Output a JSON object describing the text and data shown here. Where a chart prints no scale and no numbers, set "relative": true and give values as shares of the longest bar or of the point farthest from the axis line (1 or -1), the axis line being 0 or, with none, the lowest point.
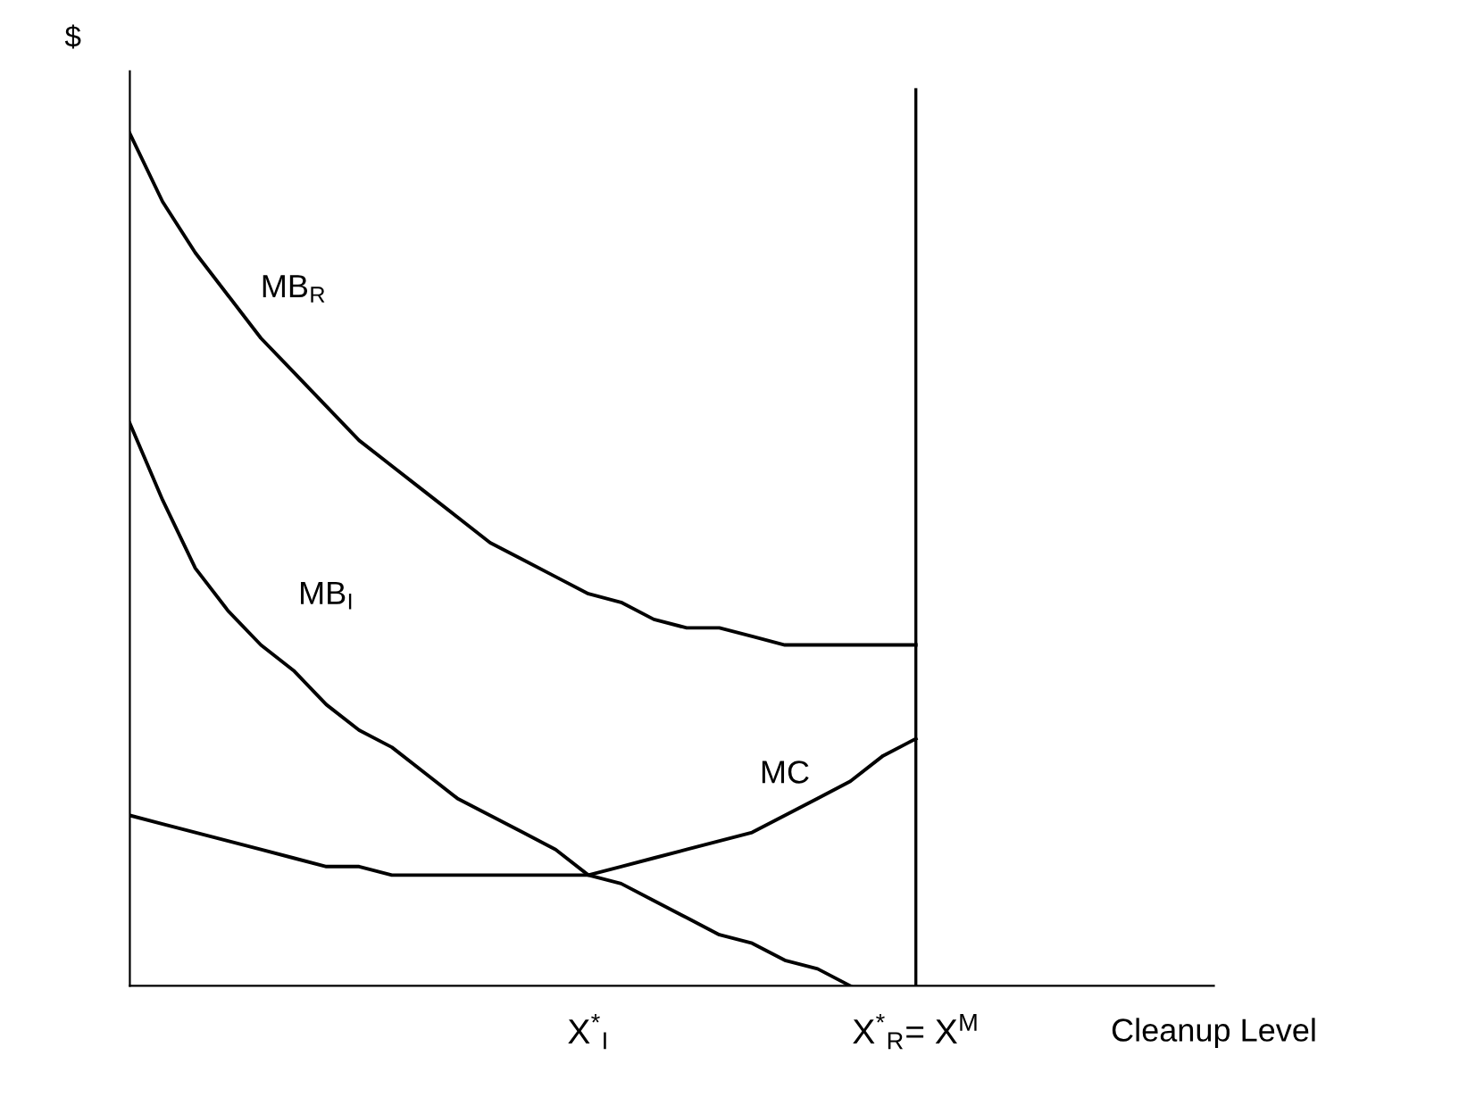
{
  "chart_data": {
    "type": "line",
    "relative": true,
    "ylabel": "$",
    "xlabel": "Cleanup Level",
    "tick_labels": "x",
    "grid": false,
    "legend": false,
    "marker": "none",
    "line_style": "solid",
    "categories": [
      null,
      null,
      null,
      null,
      null,
      null,
      null,
      null,
      null,
      null,
      null,
      null,
      null,
      null,
      "X$^{*}$$_{I}$",
      null,
      null,
      null,
      null,
      null,
      null,
      null,
      null,
      null,
      "X$^{*}$$_{R}$= X$^{M}$",
      null,
      null,
      null,
      null,
      null,
      null,
      null,
      null,
      null
    ],
    "series": [
      {
        "name": "MB$_{R}$",
        "color": "#000000",
        "values": [
          1.0,
          0.92,
          0.86,
          0.81,
          0.76,
          0.72,
          0.68,
          0.64,
          0.61,
          0.58,
          0.55,
          0.52,
          0.5,
          0.48,
          0.46,
          0.45,
          0.43,
          0.42,
          0.42,
          0.41,
          0.4,
          0.4,
          0.4,
          0.4,
          0.4,
          null,
          null,
          null,
          null,
          null,
          null,
          null,
          null,
          null
        ]
      },
      {
        "name": "MB$_{I}$",
        "color": "#000000",
        "values": [
          0.66,
          0.57,
          0.49,
          0.44,
          0.4,
          0.37,
          0.33,
          0.3,
          0.28,
          0.25,
          0.22,
          0.2,
          0.18,
          0.16,
          0.13,
          0.12,
          0.1,
          0.08,
          0.06,
          0.05,
          0.03,
          0.02,
          0.0,
          null,
          null,
          null,
          null,
          null,
          null,
          null,
          null,
          null,
          null,
          null
        ]
      },
      {
        "name": "MC",
        "color": "#000000",
        "values": [
          0.2,
          0.19,
          0.18,
          0.17,
          0.16,
          0.15,
          0.14,
          0.14,
          0.13,
          0.13,
          0.13,
          0.13,
          0.13,
          0.13,
          0.13,
          0.14,
          0.15,
          0.16,
          0.17,
          0.18,
          0.2,
          0.22,
          0.24,
          0.27,
          0.29,
          null,
          null,
          null,
          null,
          null,
          null,
          null,
          null,
          null
        ]
      }
    ],
    "ref_lines": [
      {
        "axis": "x",
        "value": "X$^{*}$$_{R}$= X$^{M}$",
        "color": "#000000",
        "line_style": "solid"
      }
    ]
  }
}
